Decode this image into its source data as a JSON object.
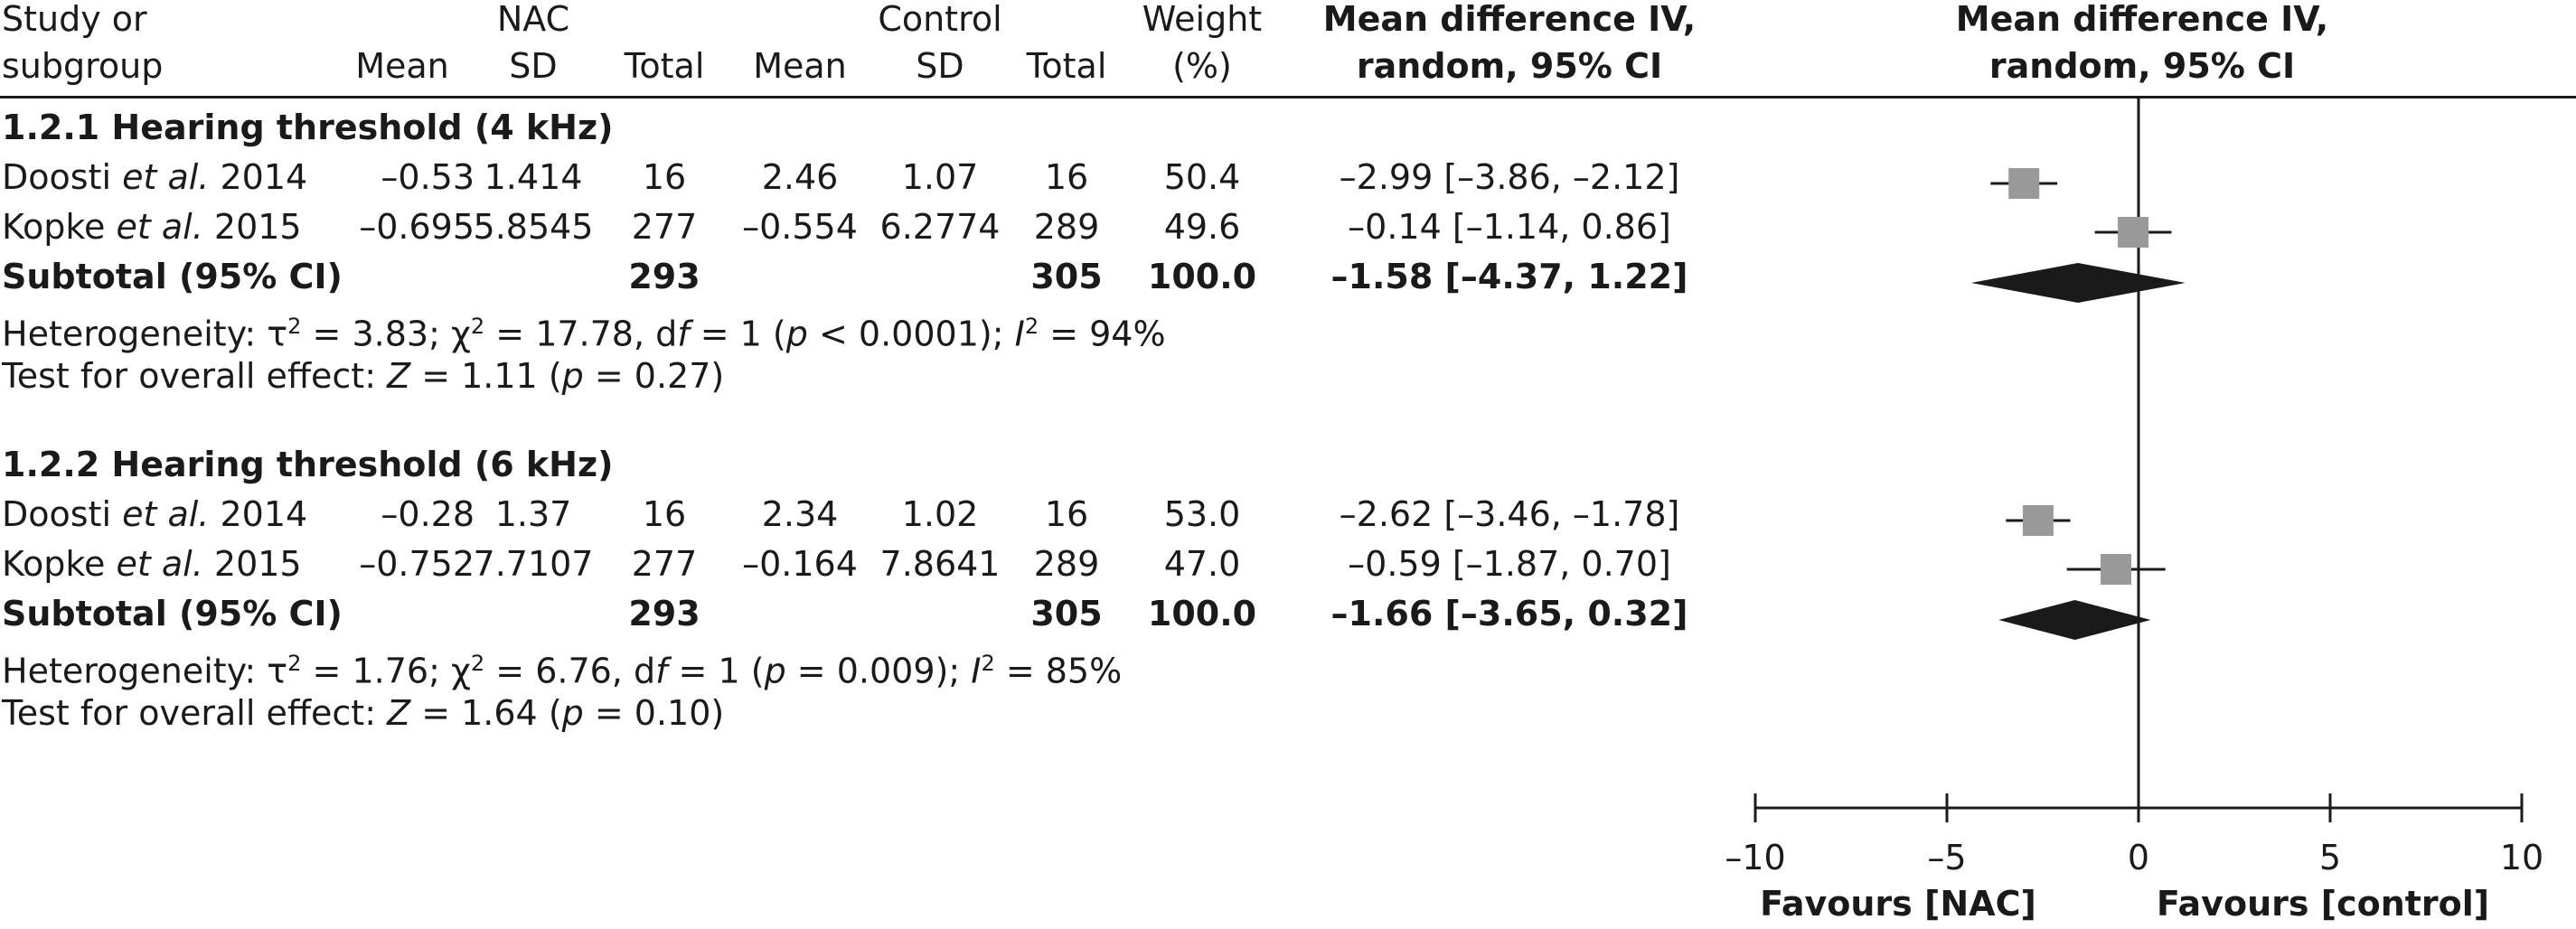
{
  "header": {
    "study_line1": "Study or",
    "study_line2": "subgroup",
    "nac_group": "NAC",
    "control_group": "Control",
    "col_mean": "Mean",
    "col_sd": "SD",
    "col_total": "Total",
    "weight_line1": "Weight",
    "weight_line2": "(%)",
    "md_line1": "Mean difference IV,",
    "md_line2": "random, 95% CI",
    "plot_line1": "Mean difference IV,",
    "plot_line2": "random, 95% CI"
  },
  "groups": [
    {
      "title": "1.2.1 Hearing threshold (4 kHz)",
      "studies": [
        {
          "author": "Doosti",
          "etal": "et al.",
          "year": "2014",
          "nac_mean": "–0.53",
          "nac_sd": "1.414",
          "nac_total": "16",
          "ctrl_mean": "2.46",
          "ctrl_sd": "1.07",
          "ctrl_total": "16",
          "weight": "50.4",
          "ci_text": "–2.99 [–3.86, –2.12]"
        },
        {
          "author": "Kopke",
          "etal": "et al.",
          "year": "2015",
          "nac_mean": "–0.695",
          "nac_sd": "5.8545",
          "nac_total": "277",
          "ctrl_mean": "–0.554",
          "ctrl_sd": "6.2774",
          "ctrl_total": "289",
          "weight": "49.6",
          "ci_text": "–0.14 [–1.14, 0.86]"
        }
      ],
      "subtotal": {
        "label": "Subtotal (95% CI)",
        "nac_total": "293",
        "ctrl_total": "305",
        "weight": "100.0",
        "ci_text": "–1.58 [–4.37, 1.22]"
      },
      "heterogeneity": {
        "prefix": "Heterogeneity: τ",
        "tau2": "3.83",
        "chi2": "17.78",
        "df": "1",
        "p_sign": "<",
        "p": "0.0001",
        "i2": "94%"
      },
      "overall": {
        "z": "1.11",
        "p": "0.27"
      }
    },
    {
      "title": "1.2.2 Hearing threshold (6 kHz)",
      "studies": [
        {
          "author": "Doosti",
          "etal": "et al.",
          "year": "2014",
          "nac_mean": "–0.28",
          "nac_sd": "1.37",
          "nac_total": "16",
          "ctrl_mean": "2.34",
          "ctrl_sd": "1.02",
          "ctrl_total": "16",
          "weight": "53.0",
          "ci_text": "–2.62 [–3.46, –1.78]"
        },
        {
          "author": "Kopke",
          "etal": "et al.",
          "year": "2015",
          "nac_mean": "–0.752",
          "nac_sd": "7.7107",
          "nac_total": "277",
          "ctrl_mean": "–0.164",
          "ctrl_sd": "7.8641",
          "ctrl_total": "289",
          "weight": "47.0",
          "ci_text": "–0.59 [–1.87, 0.70]"
        }
      ],
      "subtotal": {
        "label": "Subtotal (95% CI)",
        "nac_total": "293",
        "ctrl_total": "305",
        "weight": "100.0",
        "ci_text": "–1.66 [–3.65, 0.32]"
      },
      "heterogeneity": {
        "prefix": "Heterogeneity: τ",
        "tau2": "1.76",
        "chi2": "6.76",
        "df": "1",
        "p_sign": "=",
        "p": "0.009",
        "i2": "85%"
      },
      "overall": {
        "z": "1.64",
        "p": "0.10"
      }
    }
  ],
  "axis": {
    "favours_left": "Favours [NAC]",
    "favours_right": "Favours [control]"
  },
  "colors": {
    "square": "#999999",
    "diamond": "#1a1a1a",
    "line": "#1a1a1a"
  },
  "chart_data": {
    "type": "forest",
    "xlim": [
      -10,
      10
    ],
    "ticks": [
      -10,
      -5,
      0,
      5,
      10
    ],
    "tick_labels": [
      "–10",
      "–5",
      "0",
      "5",
      "10"
    ],
    "studies": [
      {
        "group": 0,
        "md": -2.99,
        "lo": -3.86,
        "hi": -2.12,
        "weight": 50.4
      },
      {
        "group": 0,
        "md": -0.14,
        "lo": -1.14,
        "hi": 0.86,
        "weight": 49.6
      },
      {
        "group": 1,
        "md": -2.62,
        "lo": -3.46,
        "hi": -1.78,
        "weight": 53.0
      },
      {
        "group": 1,
        "md": -0.59,
        "lo": -1.87,
        "hi": 0.7,
        "weight": 47.0
      }
    ],
    "subtotals": [
      {
        "group": 0,
        "md": -1.58,
        "lo": -4.37,
        "hi": 1.22
      },
      {
        "group": 1,
        "md": -1.66,
        "lo": -3.65,
        "hi": 0.32
      }
    ]
  }
}
